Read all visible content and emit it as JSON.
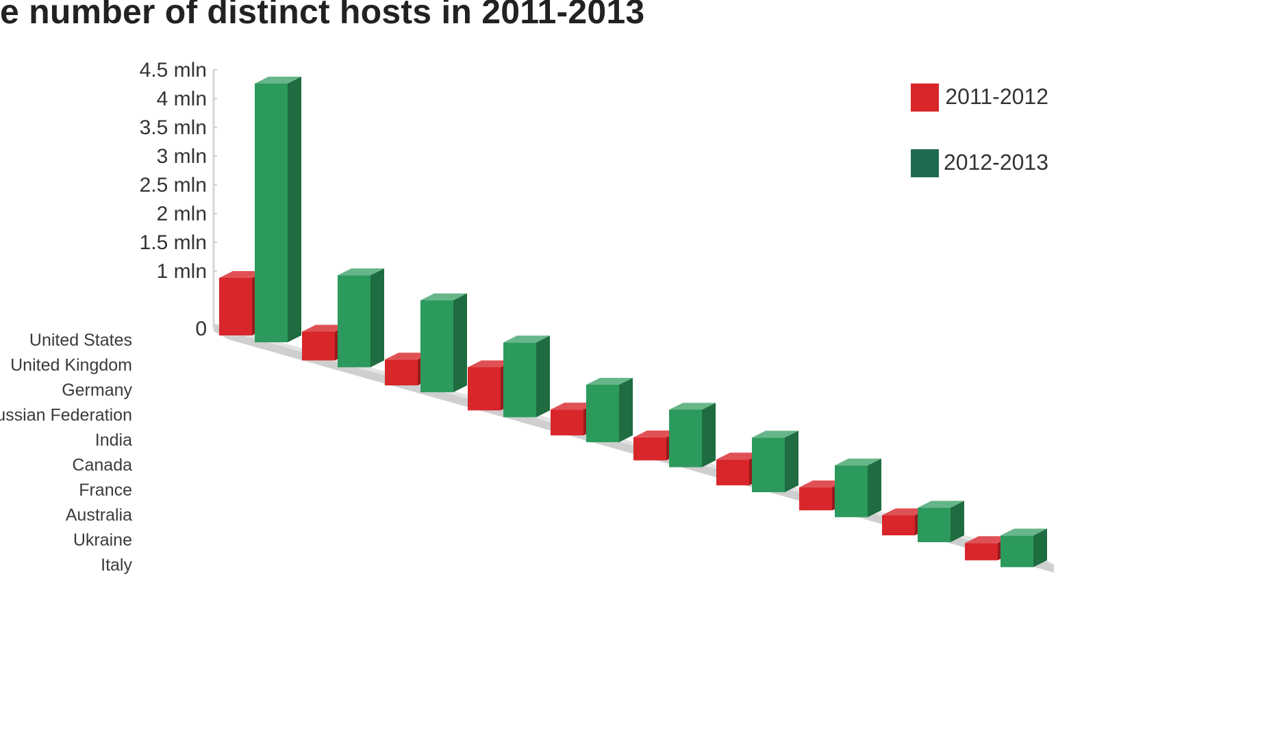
{
  "chart_data": {
    "type": "bar",
    "title": "e number of distinct hosts in 2011-2013",
    "categories": [
      "United States",
      "United Kingdom",
      "Germany",
      "Russian Federation",
      "India",
      "Canada",
      "France",
      "Australia",
      "Ukraine",
      "Italy"
    ],
    "series": [
      {
        "name": "2011-2012",
        "color": "#d8262a",
        "values": [
          1.0,
          0.5,
          0.45,
          0.75,
          0.45,
          0.4,
          0.45,
          0.4,
          0.35,
          0.3
        ]
      },
      {
        "name": "2012-2013",
        "color": "#2c9a5c",
        "values": [
          4.5,
          1.6,
          1.6,
          1.3,
          1.0,
          1.0,
          0.95,
          0.9,
          0.6,
          0.55
        ]
      }
    ],
    "yticks": [
      "0",
      "1 mln",
      "1.5 mln",
      "2 mln",
      "2.5 mln",
      "3 mln",
      "3.5 mln",
      "4 mln",
      "4.5 mln"
    ],
    "ytick_values": [
      0,
      1,
      1.5,
      2,
      2.5,
      3,
      3.5,
      4,
      4.5
    ],
    "ylim": [
      0,
      4.5
    ],
    "unit": "mln",
    "xlabel": "",
    "ylabel": "",
    "legend_position": "top-right",
    "legend_swatch_colors": [
      "#d8262a",
      "#1f6b52"
    ],
    "grid": false,
    "style": "3d-bars"
  }
}
